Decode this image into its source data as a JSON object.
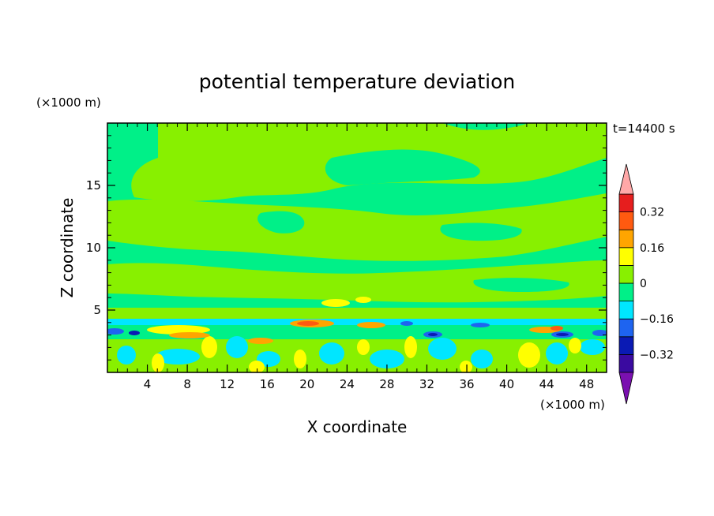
{
  "chart_data": {
    "type": "heatmap",
    "title": "potential temperature deviation",
    "xlabel": "X coordinate",
    "ylabel": "Z coordinate",
    "x_unit": "(×1000 m)",
    "y_unit": "(×1000 m)",
    "time_label": "t=14400 s",
    "xlim": [
      0,
      50
    ],
    "ylim": [
      0,
      20
    ],
    "x_ticks": [
      4,
      8,
      12,
      16,
      20,
      24,
      28,
      32,
      36,
      40,
      44,
      48
    ],
    "y_ticks": [
      5,
      10,
      15
    ],
    "colorbar": {
      "levels": [
        -0.4,
        -0.32,
        -0.24,
        -0.16,
        -0.08,
        0,
        0.08,
        0.16,
        0.24,
        0.32,
        0.4
      ],
      "tick_labels": [
        "0.32",
        "0.16",
        "0",
        "−0.16",
        "−0.32"
      ],
      "tick_values": [
        0.32,
        0.16,
        0,
        -0.16,
        -0.32
      ],
      "colors": [
        "#7a10b0",
        "#3a0aa0",
        "#0a1ab4",
        "#1e64f0",
        "#00e6ff",
        "#00f088",
        "#88f000",
        "#ffff00",
        "#ffa500",
        "#ff5a10",
        "#e61e1e",
        "#ffa8a8"
      ],
      "extend": "both"
    }
  }
}
